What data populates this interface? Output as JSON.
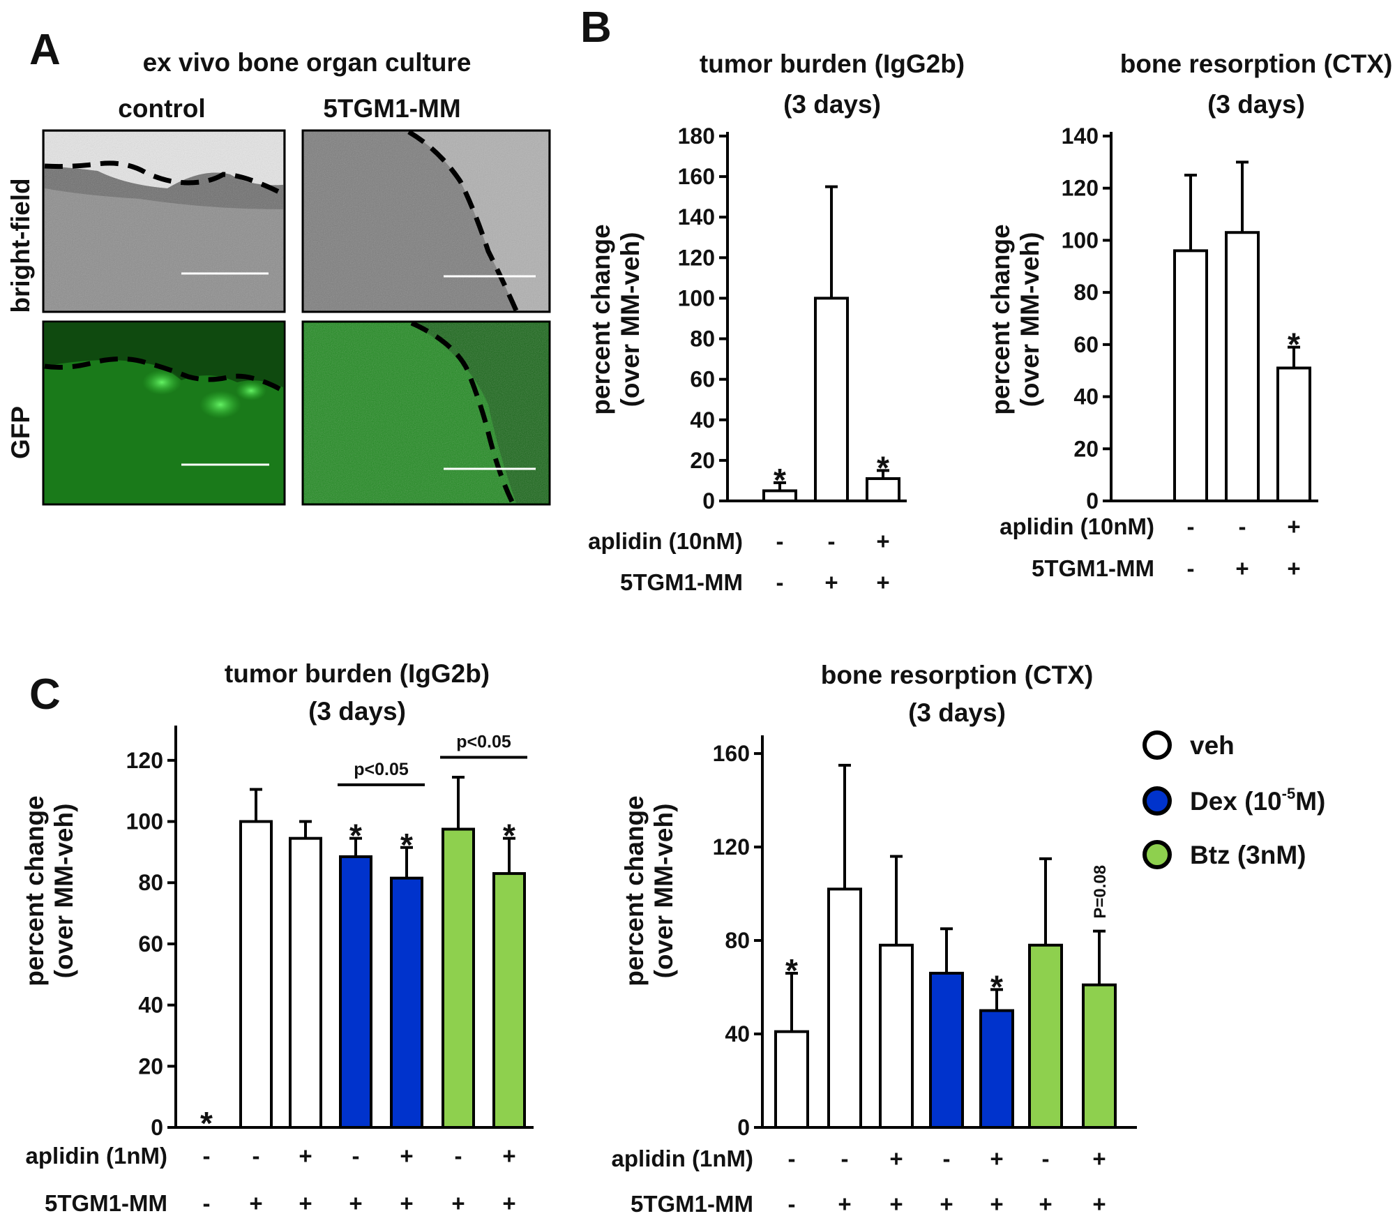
{
  "panel_labels": {
    "a": "A",
    "b": "B",
    "c": "C"
  },
  "panel_a": {
    "title": "ex vivo bone organ culture",
    "col_labels": [
      "control",
      "5TGM1-MM"
    ],
    "row_labels": [
      "bright-field",
      "GFP"
    ],
    "colors": {
      "brightfield": "#8a8a8a",
      "gfp": "#1b7a1b",
      "boundary": "#000000",
      "scale_bar": "#ffffff"
    }
  },
  "colors": {
    "veh": "#ffffff",
    "dex": "#0033cc",
    "btz": "#8ed04e",
    "axis": "#000000"
  },
  "legend": [
    {
      "label": "veh",
      "color": "#ffffff"
    },
    {
      "label_parts": [
        "Dex (10",
        "-5",
        "M)"
      ],
      "color": "#0033cc"
    },
    {
      "label": "Btz (3nM)",
      "color": "#8ed04e"
    }
  ],
  "chart_data": [
    {
      "id": "B1",
      "type": "bar",
      "title": "tumor burden (IgG2b)",
      "subtitle": "(3 days)",
      "ylabel": [
        "percent change",
        "(over MM-veh)"
      ],
      "ylim": [
        0,
        180
      ],
      "yticks": [
        0,
        20,
        40,
        60,
        80,
        100,
        120,
        140,
        160,
        180
      ],
      "values": [
        5,
        100,
        11
      ],
      "errors": [
        4,
        55,
        4
      ],
      "colors": [
        "veh",
        "veh",
        "veh"
      ],
      "annotations": [
        "*",
        "",
        "*"
      ],
      "conditions": [
        {
          "label": "aplidin (10nM)",
          "values": [
            "-",
            "-",
            "+"
          ]
        },
        {
          "label": "5TGM1-MM",
          "values": [
            "-",
            "+",
            "+"
          ]
        }
      ]
    },
    {
      "id": "B2",
      "type": "bar",
      "title": "bone resorption (CTX)",
      "subtitle": "(3 days)",
      "ylabel": [
        "percent change",
        "(over MM-veh)"
      ],
      "ylim": [
        0,
        140
      ],
      "yticks": [
        0,
        20,
        40,
        60,
        80,
        100,
        120,
        140
      ],
      "values": [
        96,
        103,
        51
      ],
      "errors": [
        29,
        27,
        8
      ],
      "colors": [
        "veh",
        "veh",
        "veh"
      ],
      "annotations": [
        "",
        "",
        "*"
      ],
      "conditions": [
        {
          "label": "aplidin (10nM)",
          "values": [
            "-",
            "-",
            "+"
          ]
        },
        {
          "label": "5TGM1-MM",
          "values": [
            "-",
            "+",
            "+"
          ]
        }
      ]
    },
    {
      "id": "C1",
      "type": "bar",
      "title": "tumor burden (IgG2b)",
      "subtitle": "(3 days)",
      "ylabel": [
        "percent change",
        "(over MM-veh)"
      ],
      "ylim": [
        0,
        130
      ],
      "yticks": [
        0,
        20,
        40,
        60,
        80,
        100,
        120
      ],
      "values": [
        0,
        100,
        94.5,
        88.5,
        81.5,
        97.5,
        83
      ],
      "errors": [
        0,
        10.5,
        5.5,
        6,
        10,
        17,
        11.5
      ],
      "colors": [
        "veh",
        "veh",
        "veh",
        "dex",
        "dex",
        "btz",
        "btz"
      ],
      "annotations": [
        "*",
        "",
        "",
        "*",
        "*",
        "",
        "*"
      ],
      "brackets": [
        {
          "from": 3,
          "to": 4,
          "label": "p<0.05",
          "y": 112
        },
        {
          "from": 5,
          "to": 6,
          "label": "p<0.05",
          "y": 121
        }
      ],
      "conditions": [
        {
          "label": "aplidin (1nM)",
          "values": [
            "-",
            "-",
            "+",
            "-",
            "+",
            "-",
            "+"
          ]
        },
        {
          "label": "5TGM1-MM",
          "values": [
            "-",
            "+",
            "+",
            "+",
            "+",
            "+",
            "+"
          ]
        }
      ]
    },
    {
      "id": "C2",
      "type": "bar",
      "title": "bone resorption (CTX)",
      "subtitle": "(3 days)",
      "ylabel": [
        "percent change",
        "(over MM-veh)"
      ],
      "ylim": [
        0,
        166
      ],
      "yticks": [
        0,
        40,
        80,
        120,
        160
      ],
      "values": [
        41,
        102,
        78,
        66,
        50,
        78,
        61
      ],
      "errors": [
        25,
        53,
        38,
        19,
        9,
        37,
        23
      ],
      "colors": [
        "veh",
        "veh",
        "veh",
        "dex",
        "dex",
        "btz",
        "btz"
      ],
      "annotations": [
        "*",
        "",
        "",
        "",
        "*",
        "",
        "P=0.08"
      ],
      "conditions": [
        {
          "label": "aplidin (1nM)",
          "values": [
            "-",
            "-",
            "+",
            "-",
            "+",
            "-",
            "+"
          ]
        },
        {
          "label": "5TGM1-MM",
          "values": [
            "-",
            "+",
            "+",
            "+",
            "+",
            "+",
            "+"
          ]
        }
      ]
    }
  ]
}
